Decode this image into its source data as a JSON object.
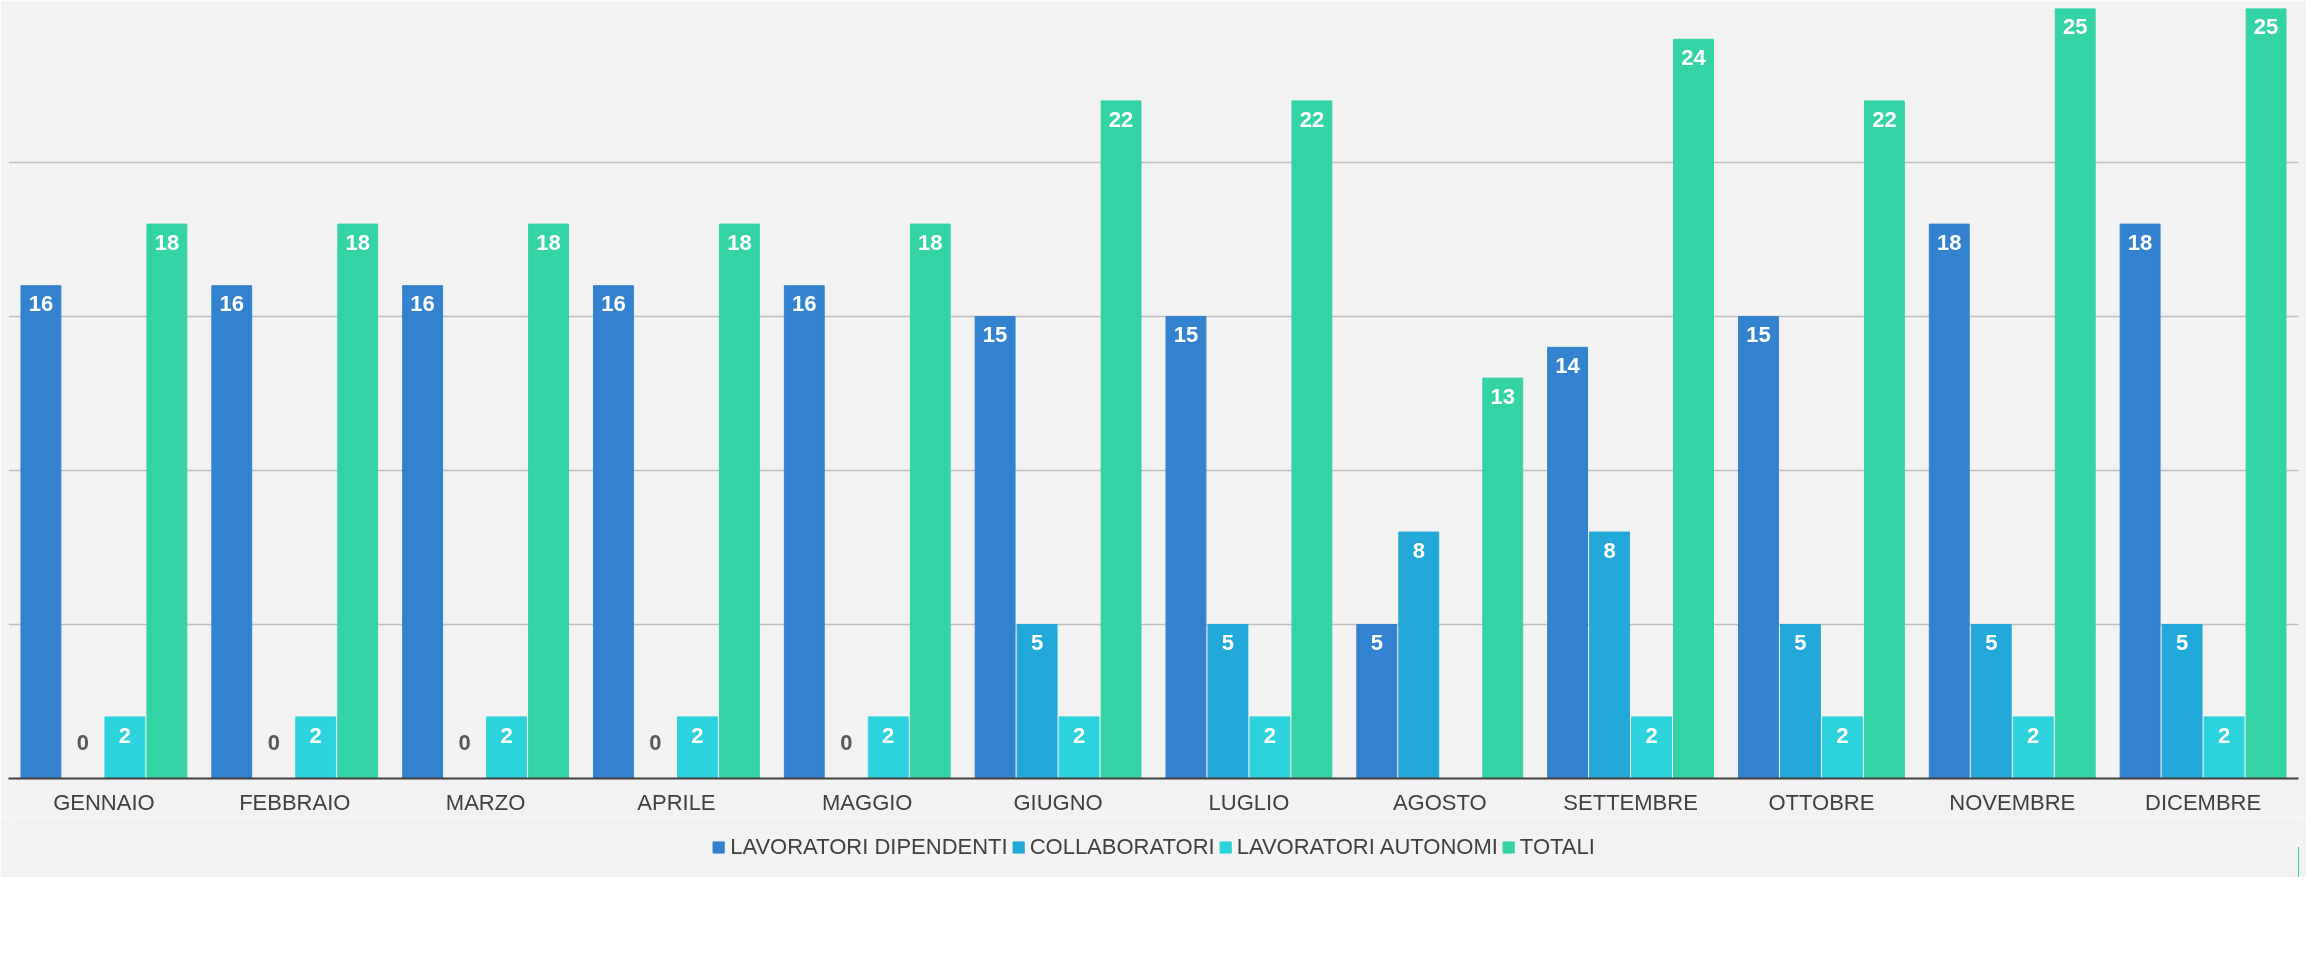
{
  "chart_data": {
    "type": "bar",
    "categories": [
      "GENNAIO",
      "FEBBRAIO",
      "MARZO",
      "APRILE",
      "MAGGIO",
      "GIUGNO",
      "LUGLIO",
      "AGOSTO",
      "SETTEMBRE",
      "OTTOBRE",
      "NOVEMBRE",
      "DICEMBRE"
    ],
    "series": [
      {
        "name": "LAVORATORI DIPENDENTI",
        "color": "#3282cf",
        "values": [
          16,
          16,
          16,
          16,
          16,
          15,
          15,
          5,
          14,
          15,
          18,
          18
        ]
      },
      {
        "name": "COLLABORATORI",
        "color": "#22a8d9",
        "values": [
          0,
          0,
          0,
          0,
          0,
          5,
          5,
          8,
          8,
          5,
          5,
          5
        ]
      },
      {
        "name": "LAVORATORI AUTONOMI",
        "color": "#2cd3dd",
        "values": [
          2,
          2,
          2,
          2,
          2,
          2,
          2,
          null,
          2,
          2,
          2,
          2
        ]
      },
      {
        "name": "TOTALI",
        "color": "#33d3a6",
        "values": [
          18,
          18,
          18,
          18,
          18,
          22,
          22,
          13,
          24,
          22,
          25,
          25
        ]
      }
    ],
    "ylim": [
      0,
      25
    ],
    "yticks": [
      {
        "value": 0,
        "label": null
      },
      {
        "value": 5,
        "label": null
      },
      {
        "value": 10,
        "label": null
      },
      {
        "value": 15,
        "label": null
      },
      {
        "value": 20,
        "label": null
      },
      {
        "value": 25,
        "label": null
      }
    ],
    "tick_labels": "x",
    "grid": "y",
    "legend": "bottom",
    "data_labels": true
  }
}
